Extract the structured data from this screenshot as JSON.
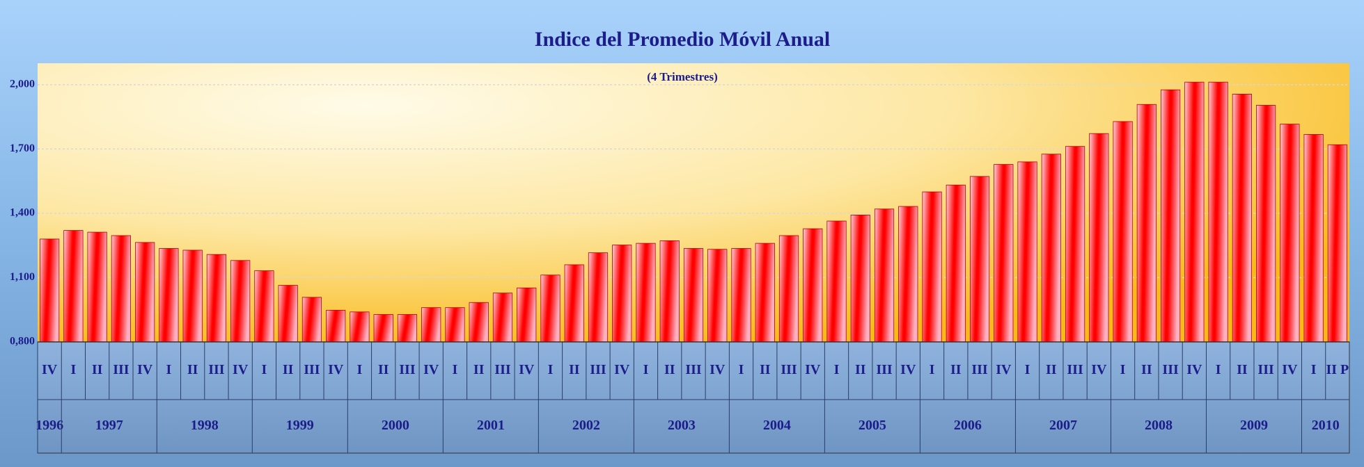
{
  "chart_data": {
    "type": "bar",
    "title": "Indice del Promedio Móvil Anual",
    "subtitle": "(4 Trimestres)",
    "categories": [
      "IV",
      "I",
      "II",
      "III",
      "IV",
      "I",
      "II",
      "III",
      "IV",
      "I",
      "II",
      "III",
      "IV",
      "I",
      "II",
      "III",
      "IV",
      "I",
      "II",
      "III",
      "IV",
      "I",
      "II",
      "III",
      "IV",
      "I",
      "II",
      "III",
      "IV",
      "I",
      "II",
      "III",
      "IV",
      "I",
      "II",
      "III",
      "IV",
      "I",
      "II",
      "III",
      "IV",
      "I",
      "II",
      "III",
      "IV",
      "I",
      "II",
      "III",
      "IV",
      "I",
      "II",
      "III",
      "IV",
      "I",
      "II P"
    ],
    "years": [
      "1996",
      "1997",
      "1998",
      "1999",
      "2000",
      "2001",
      "2002",
      "2003",
      "2004",
      "2005",
      "2006",
      "2007",
      "2008",
      "2009",
      "2010"
    ],
    "values": [
      1.28,
      1.32,
      1.312,
      1.296,
      1.264,
      1.236,
      1.228,
      1.208,
      1.18,
      1.132,
      1.064,
      1.008,
      0.948,
      0.94,
      0.928,
      0.928,
      0.96,
      0.96,
      0.984,
      1.028,
      1.052,
      1.112,
      1.16,
      1.216,
      1.252,
      1.26,
      1.272,
      1.236,
      1.232,
      1.236,
      1.26,
      1.296,
      1.328,
      1.364,
      1.392,
      1.42,
      1.432,
      1.5,
      1.532,
      1.572,
      1.628,
      1.64,
      1.676,
      1.712,
      1.772,
      1.828,
      1.908,
      1.976,
      2.012,
      2.012,
      1.956,
      1.904,
      1.816,
      1.768,
      1.72
    ],
    "color": "#ff0000",
    "ylim": [
      0.8,
      2.1
    ],
    "yticks": [
      {
        "value": 0.8,
        "label": "0,800"
      },
      {
        "value": 1.1,
        "label": "1,100"
      },
      {
        "value": 1.4,
        "label": "1,400"
      },
      {
        "value": 1.7,
        "label": "1,700"
      },
      {
        "value": 2.0,
        "label": "2,000"
      }
    ],
    "grid": true
  }
}
